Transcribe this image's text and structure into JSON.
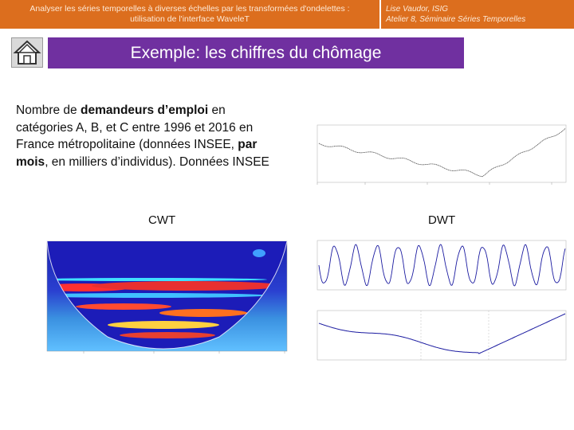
{
  "header": {
    "left_line1": "Analyser les séries temporelles à diverses échelles par les transformées d'ondelettes :",
    "left_line2": "utilisation de l'interface WaveleT",
    "right_line1": "Lise Vaudor, ISIG",
    "right_line2": "Atelier 8, Séminaire Séries Temporelles"
  },
  "title": "Exemple: les chiffres du chômage",
  "description": {
    "part1": "Nombre de ",
    "bold1": "demandeurs d’emploi",
    "part2": " en catégories A, B, et C entre 1996 et 2016  en France métropolitaine (données INSEE, ",
    "bold2": "par mois",
    "part3": ", en milliers d’individus). Données INSEE"
  },
  "captions": {
    "cwt": "CWT",
    "dwt": "DWT"
  },
  "icons": {
    "home": "home-icon"
  },
  "colors": {
    "header_bg": "#dc6e1e",
    "title_bg": "#7030a0"
  }
}
